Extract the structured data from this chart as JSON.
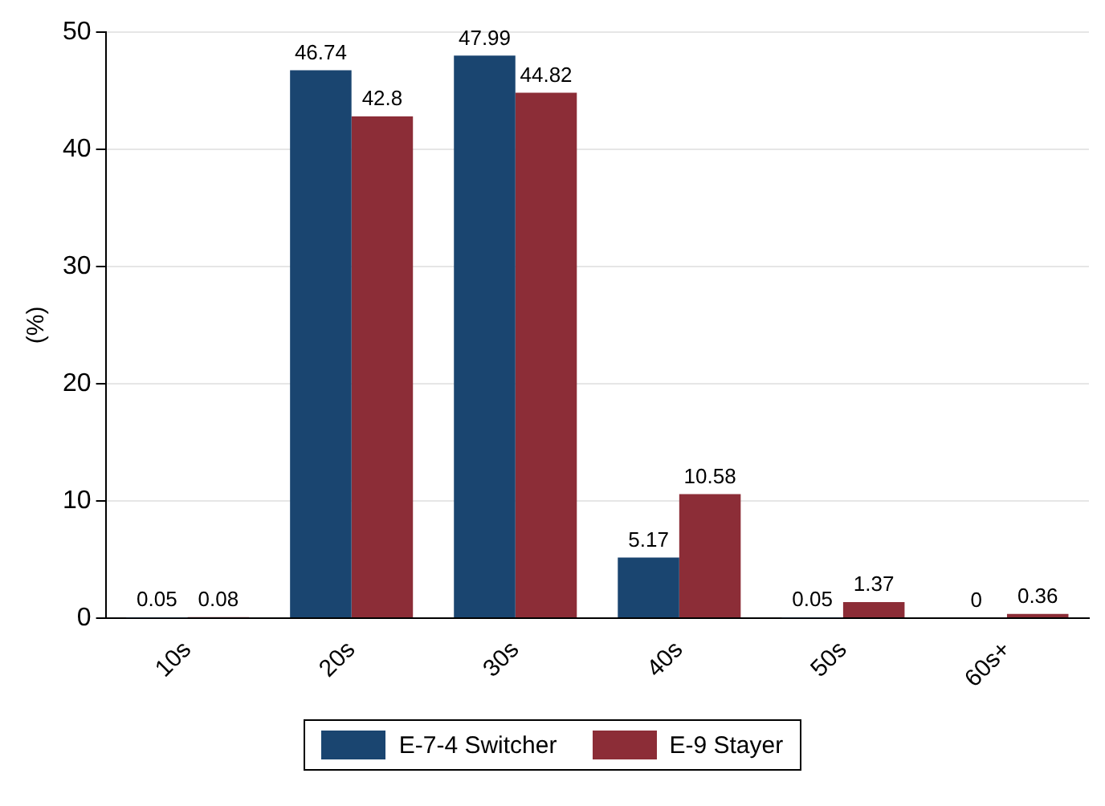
{
  "chart_data": {
    "type": "bar",
    "ylabel": "(%)",
    "categories": [
      "10s",
      "20s",
      "30s",
      "40s",
      "50s",
      "60s+"
    ],
    "series": [
      {
        "name": "E-7-4 Switcher",
        "color": "#1a4570",
        "values": [
          0.05,
          46.74,
          47.99,
          5.17,
          0.05,
          0
        ]
      },
      {
        "name": "E-9 Stayer",
        "color": "#8c2d37",
        "values": [
          0.08,
          42.8,
          44.82,
          10.58,
          1.37,
          0.36
        ]
      }
    ],
    "ylim": [
      0,
      50
    ],
    "yticks": [
      0,
      10,
      20,
      30,
      40,
      50
    ],
    "grid": "y",
    "legend": "bottom",
    "data_labels": true
  }
}
